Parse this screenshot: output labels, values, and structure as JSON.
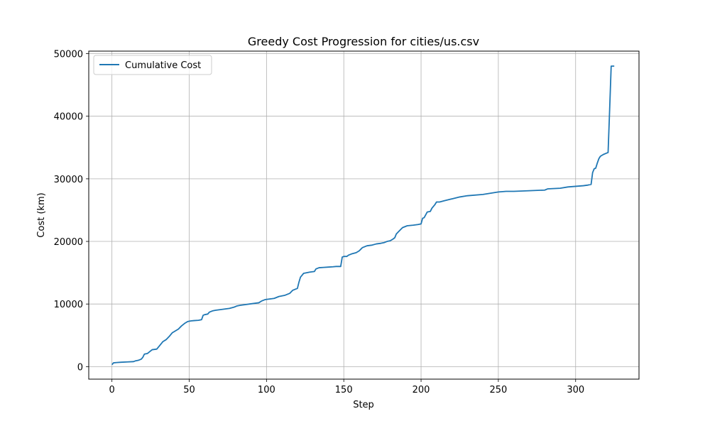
{
  "chart_data": {
    "type": "line",
    "title": "Greedy Cost Progression for cities/us.csv",
    "xlabel": "Step",
    "ylabel": "Cost (km)",
    "xlim": [
      -15,
      341
    ],
    "ylim": [
      -2000,
      50400
    ],
    "xticks": [
      0,
      50,
      100,
      150,
      200,
      250,
      300
    ],
    "yticks": [
      0,
      10000,
      20000,
      30000,
      40000,
      50000
    ],
    "grid": true,
    "legend_position": "top-left",
    "series": [
      {
        "name": "Cumulative Cost",
        "color": "#1f77b4",
        "x": [
          0,
          1,
          3,
          6,
          10,
          14,
          15,
          17,
          19,
          20,
          21,
          23,
          24,
          26,
          29,
          31,
          33,
          35,
          37,
          39,
          41,
          43,
          45,
          47,
          49,
          51,
          53,
          56,
          58,
          59,
          60,
          62,
          63,
          65,
          67,
          70,
          73,
          76,
          79,
          81,
          83,
          86,
          89,
          92,
          95,
          97,
          99,
          102,
          105,
          108,
          110,
          112,
          115,
          117,
          120,
          121,
          122,
          123,
          124,
          126,
          128,
          131,
          132,
          134,
          137,
          140,
          143,
          145,
          148,
          149,
          150,
          152,
          153,
          155,
          158,
          160,
          162,
          165,
          168,
          171,
          174,
          176,
          178,
          180,
          182,
          183,
          184,
          186,
          188,
          191,
          195,
          198,
          200,
          201,
          202,
          204,
          206,
          207,
          208,
          209,
          210,
          212,
          215,
          220,
          225,
          230,
          240,
          250,
          255,
          260,
          270,
          280,
          282,
          290,
          295,
          300,
          305,
          308,
          310,
          311,
          312,
          313,
          314,
          315,
          316,
          318,
          320,
          321,
          322,
          323,
          324,
          325
        ],
        "y": [
          300,
          600,
          650,
          700,
          750,
          800,
          900,
          1000,
          1200,
          1500,
          2000,
          2100,
          2300,
          2700,
          2800,
          3400,
          4000,
          4300,
          4800,
          5400,
          5700,
          6000,
          6500,
          6900,
          7200,
          7300,
          7350,
          7400,
          7500,
          8200,
          8300,
          8400,
          8700,
          8900,
          9000,
          9100,
          9200,
          9300,
          9500,
          9700,
          9800,
          9900,
          10000,
          10100,
          10200,
          10500,
          10700,
          10800,
          10900,
          11200,
          11300,
          11400,
          11700,
          12200,
          12500,
          13500,
          14300,
          14600,
          14900,
          15000,
          15100,
          15200,
          15600,
          15800,
          15850,
          15900,
          15950,
          16000,
          16000,
          17500,
          17600,
          17600,
          17800,
          18000,
          18200,
          18500,
          19000,
          19300,
          19400,
          19600,
          19700,
          19800,
          20000,
          20100,
          20400,
          20600,
          21200,
          21700,
          22200,
          22500,
          22600,
          22700,
          22800,
          23700,
          23800,
          24700,
          24800,
          25300,
          25600,
          25900,
          26300,
          26300,
          26500,
          26800,
          27100,
          27300,
          27500,
          27900,
          28000,
          28000,
          28100,
          28200,
          28400,
          28500,
          28700,
          28800,
          28900,
          29000,
          29100,
          31000,
          31600,
          31700,
          32500,
          33200,
          33600,
          33900,
          34100,
          34200,
          41000,
          48000,
          48000,
          48000
        ]
      }
    ]
  }
}
